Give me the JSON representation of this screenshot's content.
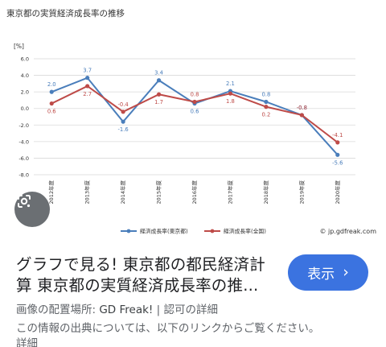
{
  "chart_data": {
    "type": "line",
    "title": "東京都の実質経済成長率の推移",
    "unit_label": "[%]",
    "categories": [
      "2012年度",
      "2013年度",
      "2014年度",
      "2015年度",
      "2016年度",
      "2017年度",
      "2018年度",
      "2019年度",
      "2020年度"
    ],
    "ylim": [
      -8.0,
      6.0
    ],
    "yticks": [
      "6.0",
      "4.0",
      "2.0",
      "0.0",
      "-2.0",
      "-4.0",
      "-6.0",
      "-8.0"
    ],
    "grid": true,
    "legend_position": "bottom",
    "series": [
      {
        "name": "経済成長率(東京都)",
        "color": "#4a7ebb",
        "values": [
          2.0,
          3.7,
          -1.6,
          3.4,
          0.6,
          2.1,
          0.8,
          -0.8,
          -5.6
        ],
        "labels": [
          "2.0",
          "3.7",
          "-1.6",
          "3.4",
          "0.6",
          "2.1",
          "0.8",
          "-0.8",
          "-5.6"
        ]
      },
      {
        "name": "経済成長率(全国)",
        "color": "#be4b48",
        "values": [
          0.6,
          2.7,
          -0.4,
          1.7,
          0.8,
          1.8,
          0.2,
          -0.8,
          -4.1
        ],
        "labels": [
          "0.6",
          "2.7",
          "-0.4",
          "1.7",
          "0.8",
          "1.8",
          "0.2",
          "-0.8",
          "-4.1"
        ]
      }
    ],
    "watermark": "© jp.gdfreak.com"
  },
  "lens": {
    "icon": "lens-icon"
  },
  "result": {
    "title_line1": "グラフで見る! 東京都の都民経済計",
    "title_line2": "算 東京都の実質経済成長率の推...",
    "show_button": "表示",
    "source_prefix": "画像の配置場所: ",
    "source_domain": "GD Freak!",
    "source_separator": " | ",
    "license_link": "認可の詳細",
    "notice": "この情報の出典については、以下のリンクからご覧ください。",
    "details_link": "詳細"
  },
  "colors": {
    "accent": "#3b73e0"
  }
}
